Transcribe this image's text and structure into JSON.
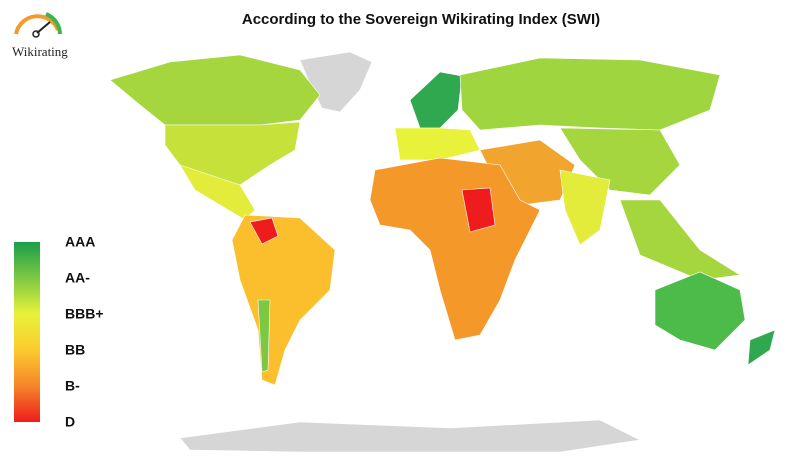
{
  "logo": {
    "text": "Wikirating"
  },
  "title": "According to the Sovereign Wikirating Index (SWI)",
  "legend": {
    "labels": [
      "AAA",
      "AA-",
      "BBB+",
      "BB",
      "B-",
      "D"
    ]
  }
}
